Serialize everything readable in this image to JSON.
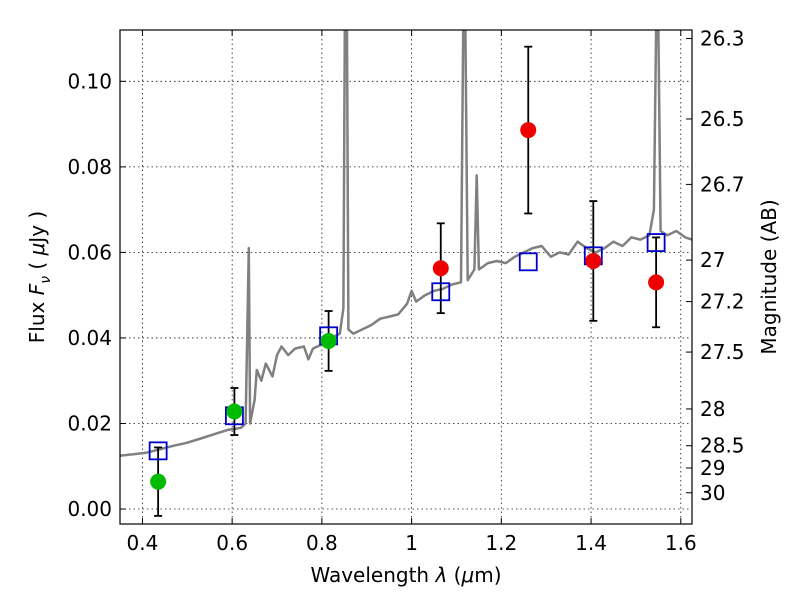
{
  "chart_data": {
    "type": "scatter",
    "title": "",
    "xlabel": "Wavelength  λ (μm)",
    "ylabel": "Flux  F_ν  ( μJy )",
    "ylabel_parts": {
      "pre": "Flux ",
      "sym": "F",
      "sub": "ν",
      "post": "  ( ",
      "mu": "μ",
      "unit": "Jy )"
    },
    "xlabel_parts": {
      "pre": "Wavelength ",
      "sym": "λ",
      "post": " (",
      "mu": "μ",
      "unit": "m)"
    },
    "y2label": "Magnitude (AB)",
    "xlim": [
      0.35,
      1.625
    ],
    "ylim": [
      -0.0035,
      0.112
    ],
    "grid": true,
    "x_ticks": [
      0.4,
      0.6,
      0.8,
      1.0,
      1.2,
      1.4,
      1.6
    ],
    "x_tick_labels": [
      "0.4",
      "0.6",
      "0.8",
      "1",
      "1.2",
      "1.4",
      "1.6"
    ],
    "y_ticks": [
      0.0,
      0.02,
      0.04,
      0.06,
      0.08,
      0.1
    ],
    "y_tick_labels": [
      "0.00",
      "0.02",
      "0.04",
      "0.06",
      "0.08",
      "0.10"
    ],
    "y2_ticks": [
      {
        "label": "26.3",
        "flux": 0.11
      },
      {
        "label": "26.5",
        "flux": 0.0912
      },
      {
        "label": "26.7",
        "flux": 0.0759
      },
      {
        "label": "27",
        "flux": 0.0582
      },
      {
        "label": "27.2",
        "flux": 0.0485
      },
      {
        "label": "27.5",
        "flux": 0.0367
      },
      {
        "label": "28",
        "flux": 0.0234
      },
      {
        "label": "28.5",
        "flux": 0.0148
      },
      {
        "label": "29",
        "flux": 0.0096
      },
      {
        "label": "30",
        "flux": 0.0038
      }
    ],
    "colors": {
      "spectrum": "#808080",
      "model_points": "#0000cc",
      "observed_green": "#00bb00",
      "observed_red": "#ee0000",
      "error_bars": "#000000"
    },
    "series": [
      {
        "kind": "line",
        "role": "model spectrum",
        "points": [
          [
            0.35,
            0.0125
          ],
          [
            0.38,
            0.0128
          ],
          [
            0.41,
            0.0132
          ],
          [
            0.44,
            0.014
          ],
          [
            0.47,
            0.0148
          ],
          [
            0.5,
            0.0155
          ],
          [
            0.53,
            0.0165
          ],
          [
            0.56,
            0.0175
          ],
          [
            0.59,
            0.0185
          ],
          [
            0.62,
            0.019
          ],
          [
            0.63,
            0.02
          ],
          [
            0.637,
            0.061
          ],
          [
            0.64,
            0.02
          ],
          [
            0.65,
            0.0255
          ],
          [
            0.655,
            0.0325
          ],
          [
            0.665,
            0.03
          ],
          [
            0.675,
            0.034
          ],
          [
            0.69,
            0.031
          ],
          [
            0.7,
            0.036
          ],
          [
            0.71,
            0.038
          ],
          [
            0.725,
            0.036
          ],
          [
            0.74,
            0.0375
          ],
          [
            0.76,
            0.038
          ],
          [
            0.77,
            0.035
          ],
          [
            0.78,
            0.0375
          ],
          [
            0.8,
            0.0385
          ],
          [
            0.82,
            0.04
          ],
          [
            0.84,
            0.041
          ],
          [
            0.848,
            0.047
          ],
          [
            0.851,
            0.112
          ],
          [
            0.856,
            0.112
          ],
          [
            0.859,
            0.042
          ],
          [
            0.87,
            0.041
          ],
          [
            0.89,
            0.042
          ],
          [
            0.91,
            0.043
          ],
          [
            0.93,
            0.0445
          ],
          [
            0.95,
            0.045
          ],
          [
            0.97,
            0.0455
          ],
          [
            0.99,
            0.048
          ],
          [
            1.0,
            0.051
          ],
          [
            1.01,
            0.0485
          ],
          [
            1.03,
            0.05
          ],
          [
            1.05,
            0.051
          ],
          [
            1.07,
            0.0515
          ],
          [
            1.09,
            0.0525
          ],
          [
            1.11,
            0.053
          ],
          [
            1.115,
            0.112
          ],
          [
            1.12,
            0.112
          ],
          [
            1.125,
            0.0535
          ],
          [
            1.14,
            0.056
          ],
          [
            1.145,
            0.078
          ],
          [
            1.15,
            0.056
          ],
          [
            1.17,
            0.0575
          ],
          [
            1.19,
            0.058
          ],
          [
            1.21,
            0.0575
          ],
          [
            1.23,
            0.059
          ],
          [
            1.25,
            0.06
          ],
          [
            1.27,
            0.061
          ],
          [
            1.29,
            0.0615
          ],
          [
            1.31,
            0.059
          ],
          [
            1.33,
            0.06
          ],
          [
            1.35,
            0.0595
          ],
          [
            1.37,
            0.0625
          ],
          [
            1.39,
            0.061
          ],
          [
            1.41,
            0.06
          ],
          [
            1.43,
            0.061
          ],
          [
            1.45,
            0.0625
          ],
          [
            1.47,
            0.0615
          ],
          [
            1.49,
            0.0635
          ],
          [
            1.51,
            0.063
          ],
          [
            1.53,
            0.064
          ],
          [
            1.54,
            0.07
          ],
          [
            1.545,
            0.112
          ],
          [
            1.55,
            0.112
          ],
          [
            1.555,
            0.065
          ],
          [
            1.57,
            0.064
          ],
          [
            1.59,
            0.065
          ],
          [
            1.61,
            0.0635
          ],
          [
            1.625,
            0.063
          ]
        ]
      },
      {
        "kind": "open-squares",
        "role": "model photometry",
        "points": [
          [
            0.435,
            0.0136
          ],
          [
            0.605,
            0.0218
          ],
          [
            0.815,
            0.0405
          ],
          [
            1.065,
            0.0508
          ],
          [
            1.26,
            0.0578
          ],
          [
            1.405,
            0.0592
          ],
          [
            1.545,
            0.0623
          ]
        ]
      },
      {
        "kind": "filled-circles",
        "role": "observed photometry",
        "points": [
          {
            "x": 0.435,
            "y": 0.0064,
            "err": 0.008,
            "color": "green"
          },
          {
            "x": 0.605,
            "y": 0.0228,
            "err": 0.0055,
            "color": "green"
          },
          {
            "x": 0.815,
            "y": 0.0393,
            "err": 0.007,
            "color": "green"
          },
          {
            "x": 1.065,
            "y": 0.0563,
            "err": 0.0105,
            "color": "red"
          },
          {
            "x": 1.26,
            "y": 0.0886,
            "err": 0.0195,
            "color": "red"
          },
          {
            "x": 1.405,
            "y": 0.058,
            "err": 0.014,
            "color": "red"
          },
          {
            "x": 1.545,
            "y": 0.053,
            "err": 0.0105,
            "color": "red"
          }
        ]
      }
    ]
  }
}
